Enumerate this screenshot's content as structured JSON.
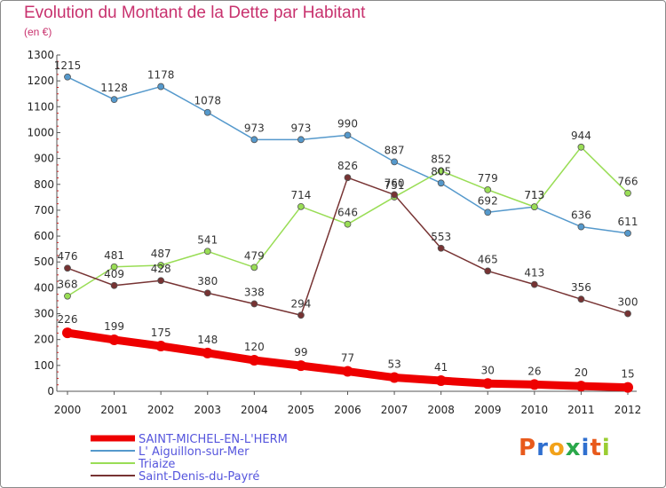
{
  "title": "Evolution du Montant de la Dette par Habitant",
  "subtitle": "(en €)",
  "logo": {
    "letters": [
      "P",
      "r",
      "o",
      "x",
      "i",
      "t",
      "i"
    ],
    "colors": [
      "#e85a1c",
      "#2f6fcf",
      "#f2a21a",
      "#2aa84a",
      "#2f6fcf",
      "#e85a1c",
      "#9acd32"
    ]
  },
  "chart_data": {
    "type": "line",
    "title": "Evolution du Montant de la Dette par Habitant",
    "ylabel": "(en €)",
    "xlabel": "",
    "x": [
      2000,
      2001,
      2002,
      2003,
      2004,
      2005,
      2006,
      2007,
      2008,
      2009,
      2010,
      2011,
      2012
    ],
    "ylim": [
      0,
      1300
    ],
    "yticks": [
      0,
      100,
      200,
      300,
      400,
      500,
      600,
      700,
      800,
      900,
      1000,
      1100,
      1200,
      1300
    ],
    "grid": false,
    "legend": "bottom-left",
    "series": [
      {
        "name": "SAINT-MICHEL-EN-L'HERM",
        "color": "#ee0000",
        "values": [
          226,
          199,
          175,
          148,
          120,
          99,
          77,
          53,
          41,
          30,
          26,
          20,
          15
        ]
      },
      {
        "name": "L' Aiguillon-sur-Mer",
        "color": "#5599cc",
        "values": [
          1215,
          1128,
          1178,
          1078,
          973,
          973,
          990,
          887,
          805,
          692,
          713,
          636,
          611
        ]
      },
      {
        "name": "Triaize",
        "color": "#99dd55",
        "values": [
          368,
          481,
          487,
          541,
          479,
          714,
          646,
          751,
          852,
          779,
          713,
          944,
          766
        ]
      },
      {
        "name": "Saint-Denis-du-Payré",
        "color": "#773333",
        "values": [
          476,
          409,
          428,
          380,
          338,
          294,
          826,
          760,
          553,
          465,
          413,
          356,
          300
        ]
      }
    ]
  }
}
